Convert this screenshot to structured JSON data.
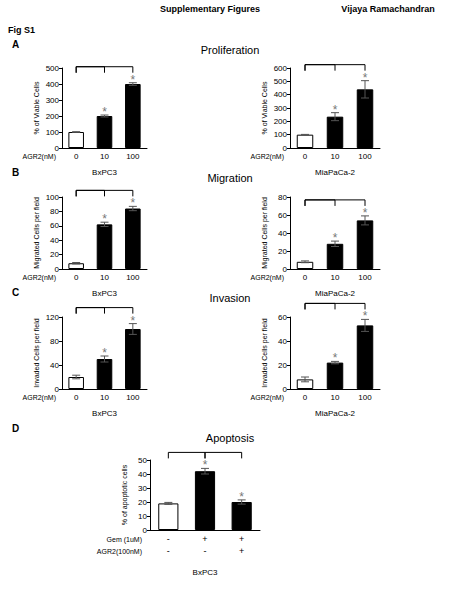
{
  "header": {
    "title": "Supplementary Figures",
    "author": "Vijaya Ramachandran",
    "figure": "Fig S1"
  },
  "panels": [
    {
      "label": "A",
      "title": "Proliferation"
    },
    {
      "label": "B",
      "title": "Migration"
    },
    {
      "label": "C",
      "title": "Invasion"
    },
    {
      "label": "D",
      "title": "Apoptosis"
    }
  ],
  "chart_data": [
    {
      "type": "bar",
      "panel": "A",
      "categories": [
        "0",
        "10",
        "100"
      ],
      "category_title": "AGR2(nM)",
      "xlabel": "BxPC3",
      "ylabel": "% of Viable Cells",
      "values": [
        100,
        200,
        400
      ],
      "errors": [
        2,
        6,
        8
      ],
      "colors": [
        "#ffffff",
        "#000000",
        "#000000"
      ],
      "star_labels": [
        null,
        "*",
        "*"
      ],
      "comparisons": [
        [
          0,
          1
        ],
        [
          0,
          2
        ]
      ],
      "ylim": [
        0,
        500
      ],
      "yticks": [
        0,
        100,
        200,
        300,
        400,
        500
      ],
      "grid": false
    },
    {
      "type": "bar",
      "panel": "A",
      "categories": [
        "0",
        "10",
        "100"
      ],
      "category_title": "AGR2(nM)",
      "xlabel": "MiaPaCa-2",
      "ylabel": "% of Viable Cells",
      "values": [
        100,
        235,
        440
      ],
      "errors": [
        2,
        30,
        65
      ],
      "colors": [
        "#ffffff",
        "#000000",
        "#000000"
      ],
      "star_labels": [
        null,
        "*",
        "*"
      ],
      "comparisons": [
        [
          0,
          1
        ],
        [
          0,
          2
        ]
      ],
      "ylim": [
        0,
        600
      ],
      "yticks": [
        0,
        100,
        200,
        300,
        400,
        500,
        600
      ],
      "grid": false
    },
    {
      "type": "bar",
      "panel": "B",
      "categories": [
        "0",
        "10",
        "100"
      ],
      "category_title": "AGR2(nM)",
      "xlabel": "BxPC3",
      "ylabel": "Migrated Cells per field",
      "values": [
        8,
        62,
        84
      ],
      "errors": [
        1,
        3,
        3
      ],
      "colors": [
        "#ffffff",
        "#000000",
        "#000000"
      ],
      "star_labels": [
        null,
        "*",
        "*"
      ],
      "comparisons": [
        [
          0,
          1
        ],
        [
          0,
          2
        ]
      ],
      "ylim": [
        0,
        100
      ],
      "yticks": [
        0,
        20,
        40,
        60,
        80,
        100
      ],
      "grid": false
    },
    {
      "type": "bar",
      "panel": "B",
      "categories": [
        "0",
        "10",
        "100"
      ],
      "category_title": "AGR2(nM)",
      "xlabel": "MiaPaCa-2",
      "ylabel": "Migrated Cells per field",
      "values": [
        8,
        28,
        54
      ],
      "errors": [
        1,
        3,
        5
      ],
      "colors": [
        "#ffffff",
        "#000000",
        "#000000"
      ],
      "star_labels": [
        null,
        "*",
        "*"
      ],
      "comparisons": [
        [
          0,
          1
        ],
        [
          0,
          2
        ]
      ],
      "ylim": [
        0,
        80
      ],
      "yticks": [
        0,
        20,
        40,
        60,
        80
      ],
      "grid": false
    },
    {
      "type": "bar",
      "panel": "C",
      "categories": [
        "0",
        "10",
        "100"
      ],
      "category_title": "AGR2(nM)",
      "xlabel": "BxPC3",
      "ylabel": "Invaded Cells per field",
      "values": [
        20,
        50,
        100
      ],
      "errors": [
        3,
        5,
        9
      ],
      "colors": [
        "#ffffff",
        "#000000",
        "#000000"
      ],
      "star_labels": [
        null,
        "*",
        "*"
      ],
      "comparisons": [
        [
          0,
          1
        ],
        [
          0,
          2
        ]
      ],
      "ylim": [
        0,
        120
      ],
      "yticks": [
        0,
        40,
        80,
        120
      ],
      "grid": false
    },
    {
      "type": "bar",
      "panel": "C",
      "categories": [
        "0",
        "10",
        "100"
      ],
      "category_title": "AGR2(nM)",
      "xlabel": "MiaPaCa-2",
      "ylabel": "Invaded Cells per field",
      "values": [
        8,
        22,
        53
      ],
      "errors": [
        2,
        1,
        5
      ],
      "colors": [
        "#ffffff",
        "#000000",
        "#000000"
      ],
      "star_labels": [
        null,
        "*",
        "*"
      ],
      "comparisons": [
        [
          0,
          1
        ],
        [
          0,
          2
        ]
      ],
      "ylim": [
        0,
        60
      ],
      "yticks": [
        0,
        20,
        40,
        60
      ],
      "grid": false
    },
    {
      "type": "bar",
      "panel": "D",
      "categories": [
        null,
        null,
        null
      ],
      "category_rows": [
        {
          "name": "Gem (1uM)",
          "labels": [
            "-",
            "+",
            "+"
          ]
        },
        {
          "name": "AGR2(100nM)",
          "labels": [
            "-",
            "-",
            "+"
          ]
        }
      ],
      "xlabel": "BxPC3",
      "ylabel": "% of apoptotic cells",
      "values": [
        19,
        42,
        20
      ],
      "errors": [
        0.7,
        2,
        1.5
      ],
      "colors": [
        "#ffffff",
        "#000000",
        "#000000"
      ],
      "star_labels": [
        null,
        "*",
        "*"
      ],
      "comparisons": [
        [
          0,
          1
        ],
        [
          1,
          2
        ]
      ],
      "ylim": [
        0,
        50
      ],
      "yticks": [
        0,
        10,
        20,
        30,
        40,
        50
      ],
      "grid": false
    }
  ]
}
